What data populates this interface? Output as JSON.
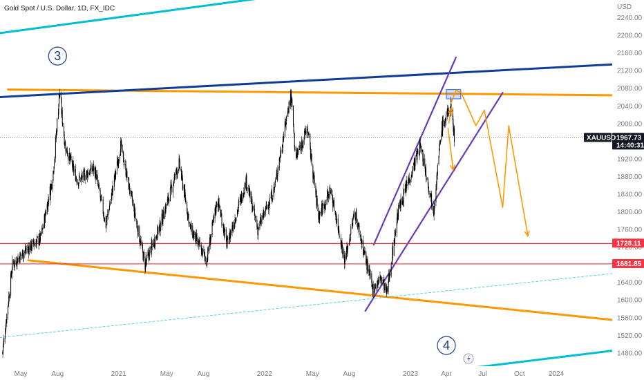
{
  "header": {
    "title": "Gold Spot / U.S. Dollar, 1D, FX_IDC"
  },
  "chart_data": {
    "type": "candlestick",
    "title": "Gold Spot / U.S. Dollar, 1D, FX_IDC",
    "symbol": "XAUUSD",
    "currency": "USD",
    "y_ticks": [
      2240,
      2200,
      2160,
      2120,
      2080,
      2040,
      2000,
      1960,
      1920,
      1880,
      1840,
      1800,
      1760,
      1720,
      1680,
      1640,
      1600,
      1560,
      1520,
      1480
    ],
    "ylim": [
      1450,
      2280
    ],
    "x_ticks": [
      "May",
      "Aug",
      "2021",
      "May",
      "Aug",
      "2022",
      "May",
      "Aug",
      "2023",
      "Apr",
      "Jul",
      "Oct",
      "2024"
    ],
    "x_tick_dates": [
      "2020-05-01",
      "2020-08-01",
      "2021-01-01",
      "2021-05-01",
      "2021-08-01",
      "2022-01-01",
      "2022-05-01",
      "2022-08-01",
      "2023-01-01",
      "2023-04-01",
      "2023-07-01",
      "2023-10-01",
      "2024-01-01"
    ],
    "xlim": [
      "2020-03-10",
      "2024-05-20"
    ],
    "price_path": [
      [
        "2020-03-16",
        1480
      ],
      [
        "2020-03-20",
        1510
      ],
      [
        "2020-04-10",
        1680
      ],
      [
        "2020-05-10",
        1710
      ],
      [
        "2020-06-20",
        1740
      ],
      [
        "2020-07-20",
        1880
      ],
      [
        "2020-08-06",
        2070
      ],
      [
        "2020-08-20",
        1950
      ],
      [
        "2020-09-20",
        1870
      ],
      [
        "2020-11-01",
        1900
      ],
      [
        "2020-11-30",
        1770
      ],
      [
        "2021-01-06",
        1950
      ],
      [
        "2021-03-08",
        1680
      ],
      [
        "2021-04-15",
        1770
      ],
      [
        "2021-06-01",
        1910
      ],
      [
        "2021-06-30",
        1760
      ],
      [
        "2021-08-09",
        1690
      ],
      [
        "2021-09-05",
        1830
      ],
      [
        "2021-09-29",
        1725
      ],
      [
        "2021-11-16",
        1870
      ],
      [
        "2021-12-15",
        1760
      ],
      [
        "2022-01-25",
        1850
      ],
      [
        "2022-03-08",
        2070
      ],
      [
        "2022-03-20",
        1920
      ],
      [
        "2022-04-18",
        1990
      ],
      [
        "2022-05-16",
        1790
      ],
      [
        "2022-06-15",
        1850
      ],
      [
        "2022-07-21",
        1690
      ],
      [
        "2022-08-15",
        1800
      ],
      [
        "2022-09-28",
        1625
      ],
      [
        "2022-10-20",
        1650
      ],
      [
        "2022-11-03",
        1615
      ],
      [
        "2022-12-01",
        1800
      ],
      [
        "2023-01-26",
        1950
      ],
      [
        "2023-02-28",
        1805
      ],
      [
        "2023-03-20",
        1990
      ],
      [
        "2023-04-13",
        2040
      ],
      [
        "2023-04-21",
        1967.73
      ]
    ],
    "last_price": {
      "label": "XAUUSD",
      "value": "1967.73",
      "countdown": "14:40:31",
      "price": 1967.73
    },
    "horizontal_levels": [
      {
        "value": "1728.11",
        "price": 1728.11,
        "color": "#f23645"
      },
      {
        "value": "1681.85",
        "price": 1681.85,
        "color": "#f23645"
      }
    ],
    "trendlines": [
      {
        "name": "resistance",
        "color": "#ff9800",
        "points": [
          [
            "2020-03-30",
            2077
          ],
          [
            "2024-05-20",
            2064
          ]
        ]
      },
      {
        "name": "long-term-rising",
        "color": "#0d3d99",
        "points": [
          [
            "2020-03-10",
            2060
          ],
          [
            "2024-05-20",
            2134
          ]
        ]
      },
      {
        "name": "support",
        "color": "#ff9800",
        "points": [
          [
            "2020-05-20",
            1690
          ],
          [
            "2024-05-20",
            1555
          ]
        ]
      },
      {
        "name": "channel-upper",
        "color": "#673ab7",
        "points": [
          [
            "2022-10-01",
            1725
          ],
          [
            "2023-04-25",
            2150
          ]
        ]
      },
      {
        "name": "channel-lower",
        "color": "#673ab7",
        "points": [
          [
            "2022-09-10",
            1575
          ],
          [
            "2023-08-20",
            2070
          ]
        ]
      },
      {
        "name": "cyan-top",
        "color": "#00bcd4",
        "points": [
          [
            "2020-03-10",
            2205
          ],
          [
            "2022-09-30",
            2318
          ]
        ]
      },
      {
        "name": "cyan-bottom",
        "color": "#00bcd4",
        "points": [
          [
            "2023-06-20",
            1448
          ],
          [
            "2024-05-20",
            1485
          ]
        ]
      },
      {
        "name": "cyan-dashed",
        "color": "#26c6da",
        "points": [
          [
            "2020-03-10",
            1515
          ],
          [
            "2024-05-20",
            1660
          ]
        ]
      }
    ],
    "projections": [
      {
        "name": "forecast",
        "color": "#ff9800",
        "points": [
          [
            "2023-04-12",
            2045
          ],
          [
            "2023-04-25",
            2075
          ],
          [
            "2023-05-08",
            2070
          ],
          [
            "2023-06-14",
            1995
          ],
          [
            "2023-07-05",
            2030
          ],
          [
            "2023-08-20",
            1810
          ],
          [
            "2023-09-04",
            1995
          ],
          [
            "2023-10-22",
            1745
          ]
        ]
      },
      {
        "name": "alt-up",
        "color": "#ff9800",
        "points": [
          [
            "2023-04-07",
            2000
          ],
          [
            "2023-04-13",
            2035
          ]
        ]
      },
      {
        "name": "alt-down",
        "color": "#ff9800",
        "points": [
          [
            "2023-04-05",
            1990
          ],
          [
            "2023-04-18",
            1895
          ]
        ]
      }
    ],
    "target_box": {
      "from": "2023-04-01",
      "to": "2023-05-07",
      "top": 2077,
      "bottom": 2056,
      "color": "#2962ff"
    },
    "wave_labels": [
      {
        "text": "3",
        "date": "2020-08-01",
        "price": 2153
      },
      {
        "text": "4",
        "date": "2023-04-01",
        "price": 1497
      }
    ],
    "grid": false,
    "legend": "none"
  }
}
